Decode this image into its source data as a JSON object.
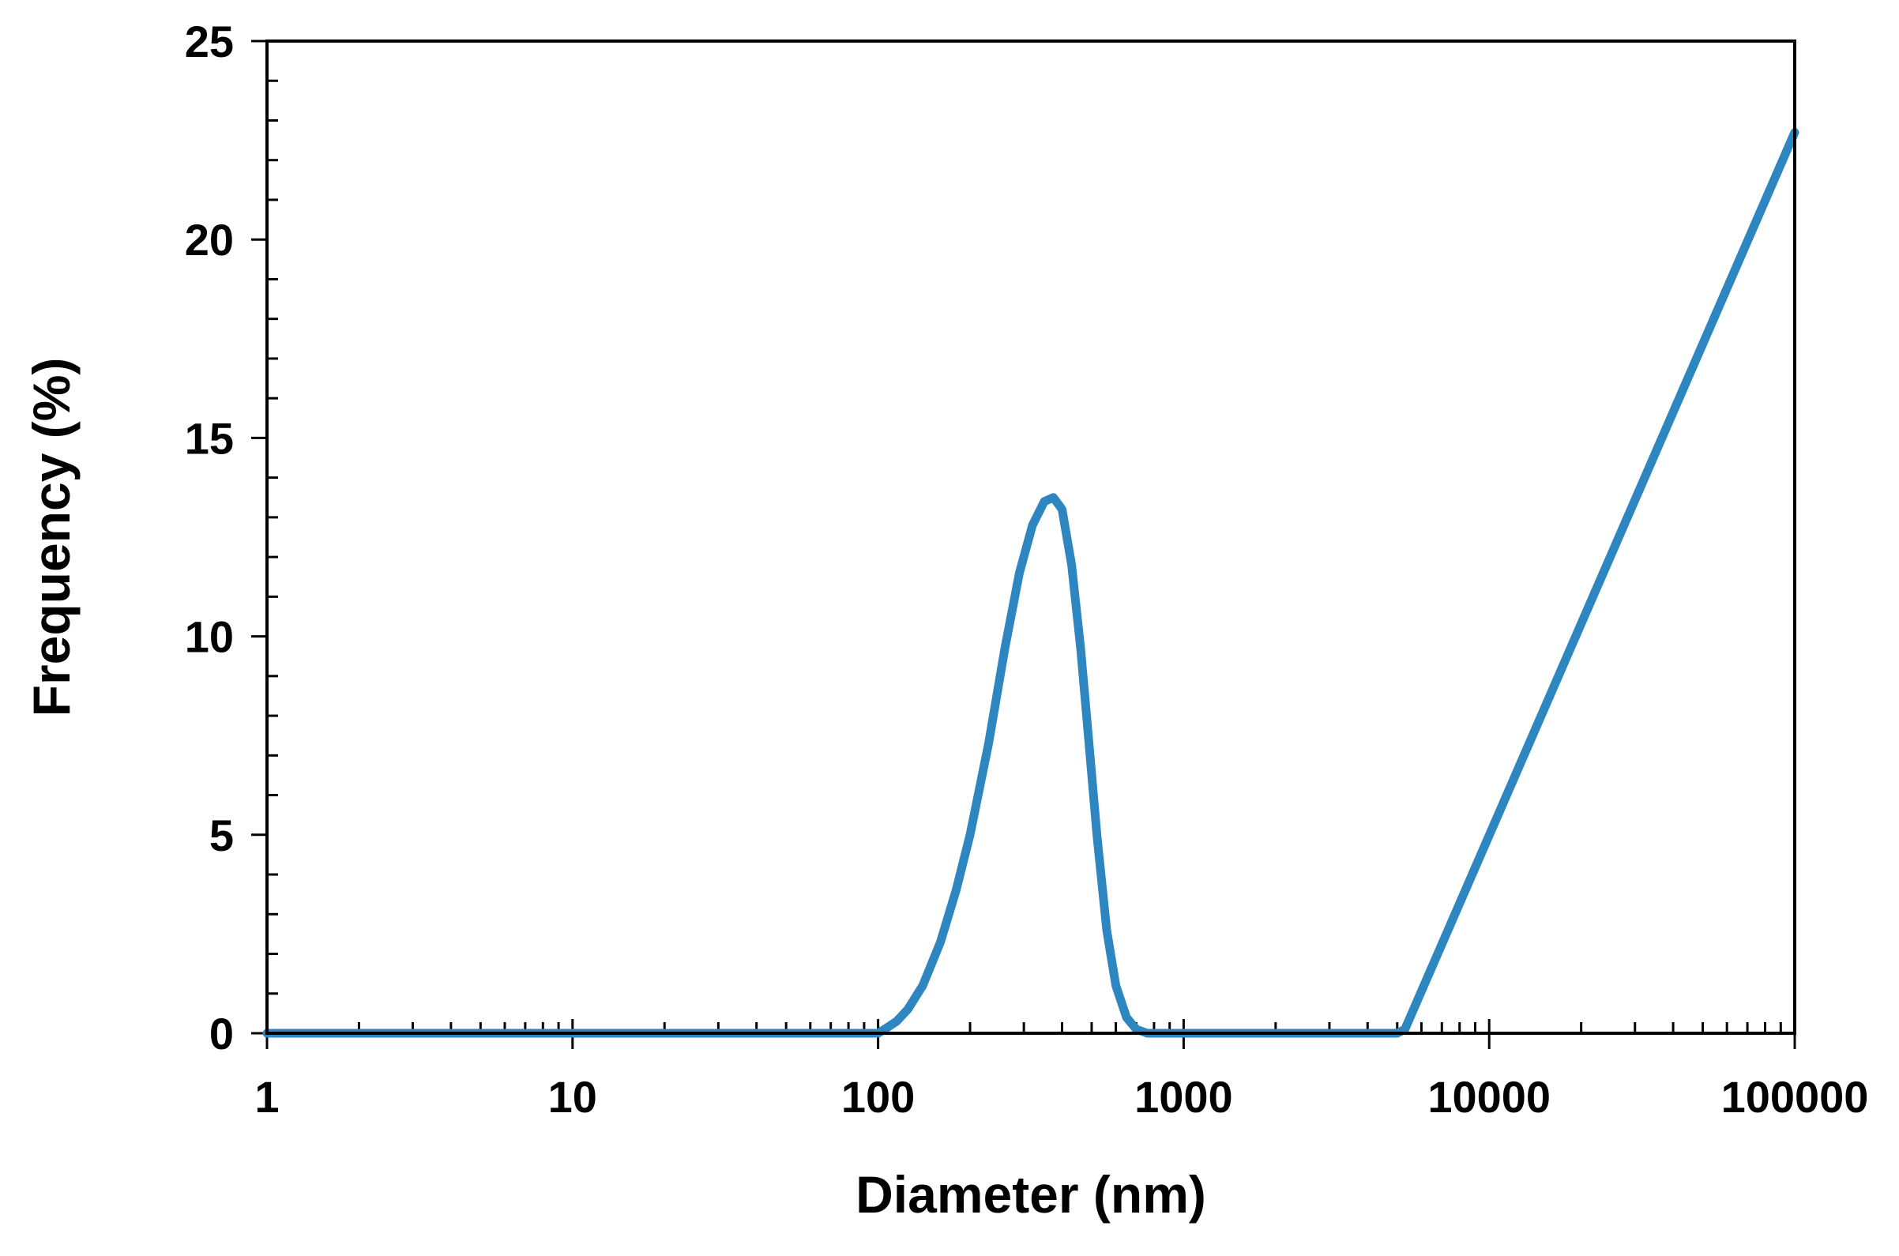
{
  "chart_data": {
    "type": "line",
    "title": "",
    "xlabel": "Diameter (nm)",
    "ylabel": "Frequency (%)",
    "xscale": "log",
    "xlim": [
      1,
      100000
    ],
    "ylim": [
      0,
      25
    ],
    "x_ticks": [
      "1",
      "10",
      "100",
      "1000",
      "10000",
      "100000"
    ],
    "y_ticks": [
      "0",
      "5",
      "10",
      "15",
      "20",
      "25"
    ],
    "grid": false,
    "legend": "none",
    "series": [
      {
        "color": "#2E86C1",
        "points": [
          [
            1,
            0
          ],
          [
            100,
            0
          ],
          [
            105,
            0.1
          ],
          [
            115,
            0.3
          ],
          [
            125,
            0.6
          ],
          [
            140,
            1.2
          ],
          [
            160,
            2.3
          ],
          [
            180,
            3.6
          ],
          [
            200,
            5.0
          ],
          [
            230,
            7.3
          ],
          [
            260,
            9.7
          ],
          [
            290,
            11.6
          ],
          [
            320,
            12.8
          ],
          [
            350,
            13.4
          ],
          [
            375,
            13.5
          ],
          [
            400,
            13.2
          ],
          [
            430,
            11.8
          ],
          [
            460,
            9.7
          ],
          [
            490,
            7.3
          ],
          [
            520,
            5.0
          ],
          [
            560,
            2.6
          ],
          [
            600,
            1.2
          ],
          [
            650,
            0.4
          ],
          [
            700,
            0.1
          ],
          [
            760,
            0
          ],
          [
            5000,
            0
          ],
          [
            5300,
            0.1
          ],
          [
            100000,
            22.7
          ]
        ]
      }
    ]
  }
}
